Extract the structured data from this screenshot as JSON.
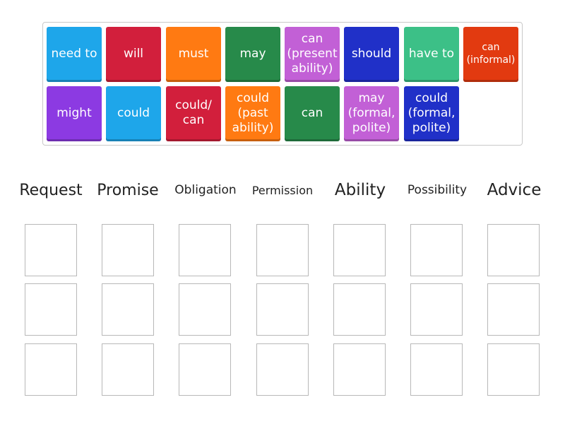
{
  "tiles": [
    {
      "label": "need to",
      "color": "#1ea6ea"
    },
    {
      "label": "will",
      "color": "#d21f3c"
    },
    {
      "label": "must",
      "color": "#ff7a12"
    },
    {
      "label": "may",
      "color": "#278a4a"
    },
    {
      "label": "can\n(present\nability)",
      "color": "#c260d6"
    },
    {
      "label": "should",
      "color": "#2030c8"
    },
    {
      "label": "have to",
      "color": "#3cc087"
    },
    {
      "label": "can\n(informal)",
      "color": "#e23a10"
    },
    {
      "label": "might",
      "color": "#8c3ae2"
    },
    {
      "label": "could",
      "color": "#1ea6ea"
    },
    {
      "label": "could/\ncan",
      "color": "#d21f3c"
    },
    {
      "label": "could\n(past\nability)",
      "color": "#ff7a12"
    },
    {
      "label": "can",
      "color": "#278a4a"
    },
    {
      "label": "may\n(formal,\npolite)",
      "color": "#c260d6"
    },
    {
      "label": "could\n(formal,\npolite)",
      "color": "#2030c8"
    }
  ],
  "categories": [
    {
      "label": "Request"
    },
    {
      "label": "Promise"
    },
    {
      "label": "Obligation"
    },
    {
      "label": "Permission"
    },
    {
      "label": "Ability"
    },
    {
      "label": "Possibility"
    },
    {
      "label": "Advice"
    }
  ]
}
